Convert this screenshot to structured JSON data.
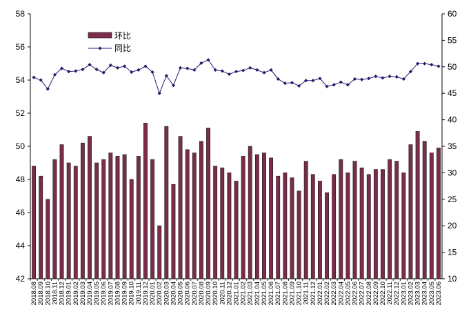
{
  "chart_data": {
    "type": "bar+line",
    "categories": [
      "2018.08",
      "2018.09",
      "2018.10",
      "2018.11",
      "2018.12",
      "2019.01",
      "2019.02",
      "2019.03",
      "2019.04",
      "2019.05",
      "2019.06",
      "2019.07",
      "2019.08",
      "2019.09",
      "2019.10",
      "2019.11",
      "2019.12",
      "2020.01",
      "2020.02",
      "2020.03",
      "2020.04",
      "2020.05",
      "2020.06",
      "2020.07",
      "2020.08",
      "2020.09",
      "2020.10",
      "2020.11",
      "2020.12",
      "2021.01",
      "2021.02",
      "2021.03",
      "2021.04",
      "2021.05",
      "2021.06",
      "2021.07",
      "2021.08",
      "2021.09",
      "2021.10",
      "2021.11",
      "2021.12",
      "2022.01",
      "2022.02",
      "2022.03",
      "2022.04",
      "2022.05",
      "2022.06",
      "2022.07",
      "2022.08",
      "2022.09",
      "2022.10",
      "2022.11",
      "2022.12",
      "2023.01",
      "2023.02",
      "2023.03",
      "2023.04",
      "2023.05",
      "2023.06"
    ],
    "series": [
      {
        "name": "环比",
        "type": "bar",
        "axis": "left",
        "color": "#7b2c4a",
        "values": [
          48.8,
          48.2,
          46.8,
          49.2,
          50.1,
          49.0,
          48.8,
          50.2,
          50.6,
          49.0,
          49.2,
          49.6,
          49.4,
          49.5,
          48.0,
          49.4,
          51.4,
          49.2,
          45.2,
          51.2,
          47.7,
          50.6,
          49.8,
          49.6,
          50.3,
          51.1,
          48.8,
          48.7,
          48.4,
          47.9,
          49.4,
          50.0,
          49.5,
          49.6,
          49.3,
          48.2,
          48.4,
          48.1,
          47.3,
          49.1,
          48.3,
          47.9,
          47.2,
          48.3,
          49.2,
          48.4,
          49.1,
          48.7,
          48.3,
          48.6,
          48.6,
          49.2,
          49.1,
          48.4,
          50.1,
          50.9,
          50.3,
          49.6,
          49.9
        ]
      },
      {
        "name": "同比",
        "type": "line",
        "axis": "right",
        "color": "#1f1a6e",
        "marker": "diamond",
        "values": [
          48.0,
          47.5,
          45.8,
          48.5,
          49.7,
          49.1,
          49.2,
          49.5,
          50.4,
          49.5,
          48.9,
          50.3,
          49.8,
          50.1,
          49.0,
          49.4,
          50.1,
          49.0,
          45.0,
          48.3,
          46.5,
          49.8,
          49.7,
          49.4,
          50.7,
          51.3,
          49.4,
          49.2,
          48.6,
          49.1,
          49.3,
          49.8,
          49.4,
          48.9,
          49.4,
          47.7,
          46.9,
          47.0,
          46.4,
          47.4,
          47.4,
          47.8,
          46.3,
          46.6,
          47.1,
          46.6,
          47.7,
          47.6,
          47.8,
          48.2,
          47.9,
          48.2,
          48.1,
          47.7,
          49.1,
          50.6,
          50.6,
          50.4,
          50.1
        ]
      }
    ],
    "y_left": {
      "min": 42,
      "max": 58,
      "ticks": [
        42,
        44,
        46,
        48,
        50,
        52,
        54,
        56,
        58
      ]
    },
    "y_right": {
      "min": 10,
      "max": 60,
      "ticks": [
        10,
        15,
        20,
        25,
        30,
        35,
        40,
        45,
        50,
        55,
        60
      ]
    },
    "legend": {
      "position": "top-left",
      "items": [
        "环比",
        "同比"
      ]
    },
    "grid": false
  }
}
